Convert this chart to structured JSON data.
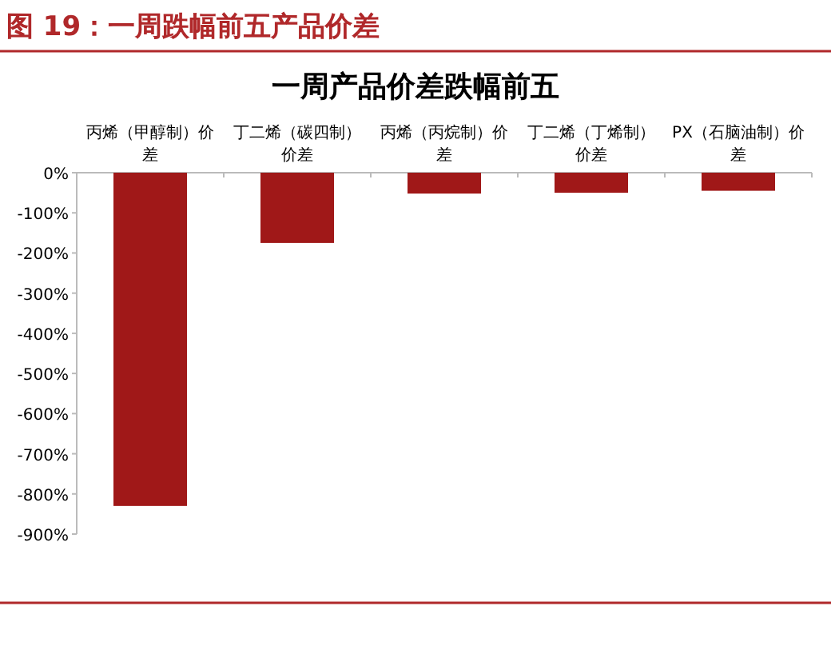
{
  "chart_data": {
    "type": "bar",
    "title": "图 19：一周跌幅前五产品价差",
    "subtitle": "一周产品价差跌幅前五",
    "categories": [
      "丙烯（甲醇制）价差",
      "丁二烯（碳四制）价差",
      "丙烯（丙烷制）价差",
      "丁二烯（丁烯制）价差",
      "PX（石脑油制）价差"
    ],
    "values": [
      -830,
      -175,
      -52,
      -50,
      -45
    ],
    "color": "#a01818",
    "ylim": [
      -900,
      0
    ],
    "yticks": [
      {
        "value": 0,
        "label": "0%"
      },
      {
        "value": -100,
        "label": "-100%"
      },
      {
        "value": -200,
        "label": "-200%"
      },
      {
        "value": -300,
        "label": "-300%"
      },
      {
        "value": -400,
        "label": "-400%"
      },
      {
        "value": -500,
        "label": "-500%"
      },
      {
        "value": -600,
        "label": "-600%"
      },
      {
        "value": -700,
        "label": "-700%"
      },
      {
        "value": -800,
        "label": "-800%"
      },
      {
        "value": -900,
        "label": "-900%"
      }
    ],
    "grid": false
  }
}
